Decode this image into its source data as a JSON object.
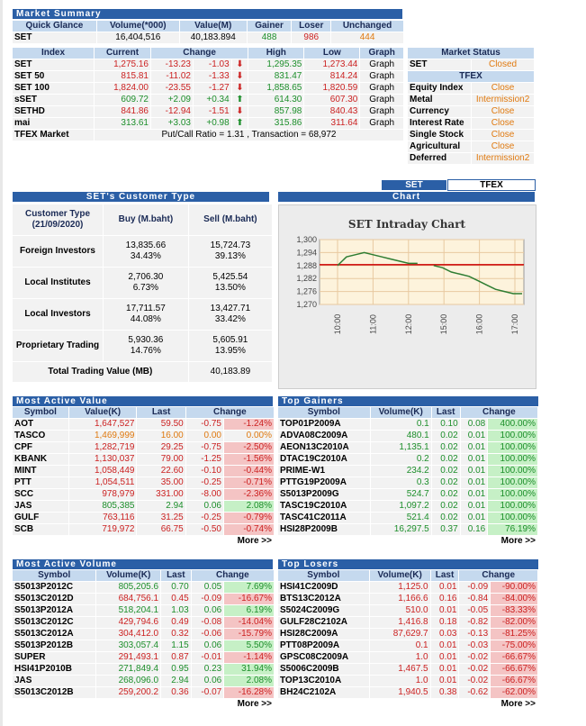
{
  "market_summary": {
    "title": "Market Summary",
    "head": [
      "Quick Glance",
      "Volume(*000)",
      "Value(M)",
      "Gainer",
      "Loser",
      "Unchanged"
    ],
    "row": {
      "label": "SET",
      "volume": "16,404,516",
      "value": "40,183.894",
      "gainer": "488",
      "loser": "986",
      "unchanged": "444"
    }
  },
  "index_table": {
    "head": [
      "Index",
      "Current",
      "Change",
      "High",
      "Low",
      "Graph"
    ],
    "rows": [
      {
        "name": "SET",
        "current": "1,275.16",
        "chg": "-13.23",
        "pct": "-1.03",
        "dir": "down",
        "high": "1,295.35",
        "low": "1,273.44",
        "graph": "Graph"
      },
      {
        "name": "SET 50",
        "current": "815.81",
        "chg": "-11.02",
        "pct": "-1.33",
        "dir": "down",
        "high": "831.47",
        "low": "814.24",
        "graph": "Graph"
      },
      {
        "name": "SET 100",
        "current": "1,824.00",
        "chg": "-23.55",
        "pct": "-1.27",
        "dir": "down",
        "high": "1,858.65",
        "low": "1,820.59",
        "graph": "Graph"
      },
      {
        "name": "sSET",
        "current": "609.72",
        "chg": "+2.09",
        "pct": "+0.34",
        "dir": "up",
        "high": "614.30",
        "low": "607.30",
        "graph": "Graph"
      },
      {
        "name": "SETHD",
        "current": "841.86",
        "chg": "-12.94",
        "pct": "-1.51",
        "dir": "down",
        "high": "857.98",
        "low": "840.43",
        "graph": "Graph"
      },
      {
        "name": "mai",
        "current": "313.61",
        "chg": "+3.03",
        "pct": "+0.98",
        "dir": "up",
        "high": "315.86",
        "low": "311.64",
        "graph": "Graph"
      }
    ],
    "tfex_label": "TFEX Market",
    "tfex_info": "Put/Call Ratio = 1.31 , Transaction = 68,972"
  },
  "market_status": {
    "title": "Market Status",
    "set_label": "SET",
    "set_status": "Closed",
    "tfex_title": "TFEX",
    "rows": [
      {
        "label": "Equity Index",
        "status": "Close"
      },
      {
        "label": "Metal",
        "status": "Intermission2"
      },
      {
        "label": "Currency",
        "status": "Close"
      },
      {
        "label": "Interest Rate",
        "status": "Close"
      },
      {
        "label": "Single Stock",
        "status": "Close"
      },
      {
        "label": "Agricultural",
        "status": "Close"
      },
      {
        "label": "Deferred",
        "status": "Intermission2"
      }
    ]
  },
  "chart_tabs": {
    "set": "SET",
    "tfex": "TFEX",
    "chart": "Chart"
  },
  "customer": {
    "title": "SET's Customer Type",
    "head": [
      "Customer Type (21/09/2020)",
      "Buy (M.baht)",
      "Sell (M.baht)"
    ],
    "rows": [
      {
        "type": "Foreign Investors",
        "buy": "13,835.66",
        "buy_pct": "34.43%",
        "sell": "15,724.73",
        "sell_pct": "39.13%"
      },
      {
        "type": "Local Institutes",
        "buy": "2,706.30",
        "buy_pct": "6.73%",
        "sell": "5,425.54",
        "sell_pct": "13.50%"
      },
      {
        "type": "Local Investors",
        "buy": "17,711.57",
        "buy_pct": "44.08%",
        "sell": "13,427.71",
        "sell_pct": "33.42%"
      },
      {
        "type": "Proprietary Trading",
        "buy": "5,930.36",
        "buy_pct": "14.76%",
        "sell": "5,605.91",
        "sell_pct": "13.95%"
      }
    ],
    "total_label": "Total Trading Value (MB)",
    "total": "40,183.89"
  },
  "chart_data": {
    "type": "line",
    "title": "SET Intraday Chart",
    "x_ticks": [
      "10:00",
      "11:00",
      "12:00",
      "15:00",
      "16:00",
      "17:00"
    ],
    "y_ticks": [
      "1,300",
      "1,294",
      "1,288",
      "1,282",
      "1,276",
      "1,270"
    ],
    "ylim": [
      1270,
      1300
    ],
    "reference_line": 1288.39,
    "series": [
      {
        "values": [
          1288,
          1292,
          1293,
          1294,
          1293,
          1292,
          1291,
          1290,
          1289,
          1289,
          1288,
          1287,
          1285,
          1284,
          1283,
          1281,
          1279,
          1277,
          1276,
          1275,
          1275
        ]
      }
    ],
    "colors": {
      "line": "#2e7d32",
      "ref": "#cc0000"
    }
  },
  "most_active_value": {
    "title": "Most Active Value",
    "head": [
      "Symbol",
      "Value(K)",
      "Last",
      "Change"
    ],
    "rows": [
      {
        "s": "AOT",
        "v": "1,647,527",
        "l": "59.50",
        "c": "-0.75",
        "p": "-1.24%",
        "d": "dn"
      },
      {
        "s": "TASCO",
        "v": "1,469,999",
        "l": "16.00",
        "c": "0.00",
        "p": "0.00%",
        "d": "or"
      },
      {
        "s": "CPF",
        "v": "1,282,719",
        "l": "29.25",
        "c": "-0.75",
        "p": "-2.50%",
        "d": "dn"
      },
      {
        "s": "KBANK",
        "v": "1,130,037",
        "l": "79.00",
        "c": "-1.25",
        "p": "-1.56%",
        "d": "dn"
      },
      {
        "s": "MINT",
        "v": "1,058,449",
        "l": "22.60",
        "c": "-0.10",
        "p": "-0.44%",
        "d": "dn"
      },
      {
        "s": "PTT",
        "v": "1,054,511",
        "l": "35.00",
        "c": "-0.25",
        "p": "-0.71%",
        "d": "dn"
      },
      {
        "s": "SCC",
        "v": "978,979",
        "l": "331.00",
        "c": "-8.00",
        "p": "-2.36%",
        "d": "dn"
      },
      {
        "s": "JAS",
        "v": "805,385",
        "l": "2.94",
        "c": "0.06",
        "p": "2.08%",
        "d": "up"
      },
      {
        "s": "GULF",
        "v": "763,116",
        "l": "31.25",
        "c": "-0.25",
        "p": "-0.79%",
        "d": "dn"
      },
      {
        "s": "SCB",
        "v": "719,972",
        "l": "66.75",
        "c": "-0.50",
        "p": "-0.74%",
        "d": "dn"
      }
    ],
    "more": "More >>"
  },
  "top_gainers": {
    "title": "Top Gainers",
    "head": [
      "Symbol",
      "Volume(K)",
      "Last",
      "Change"
    ],
    "rows": [
      {
        "s": "TOP01P2009A",
        "v": "0.1",
        "l": "0.10",
        "c": "0.08",
        "p": "400.00%"
      },
      {
        "s": "ADVA08C2009A",
        "v": "480.1",
        "l": "0.02",
        "c": "0.01",
        "p": "100.00%"
      },
      {
        "s": "AEON13C2010A",
        "v": "1,135.1",
        "l": "0.02",
        "c": "0.01",
        "p": "100.00%"
      },
      {
        "s": "DTAC19C2010A",
        "v": "0.2",
        "l": "0.02",
        "c": "0.01",
        "p": "100.00%"
      },
      {
        "s": "PRIME-W1",
        "v": "234.2",
        "l": "0.02",
        "c": "0.01",
        "p": "100.00%"
      },
      {
        "s": "PTTG19P2009A",
        "v": "0.3",
        "l": "0.02",
        "c": "0.01",
        "p": "100.00%"
      },
      {
        "s": "S5013P2009G",
        "v": "524.7",
        "l": "0.02",
        "c": "0.01",
        "p": "100.00%"
      },
      {
        "s": "TASC19C2010A",
        "v": "1,097.2",
        "l": "0.02",
        "c": "0.01",
        "p": "100.00%"
      },
      {
        "s": "TASC41C2011A",
        "v": "521.4",
        "l": "0.02",
        "c": "0.01",
        "p": "100.00%"
      },
      {
        "s": "HSI28P2009B",
        "v": "16,297.5",
        "l": "0.37",
        "c": "0.16",
        "p": "76.19%"
      }
    ],
    "more": "More >>"
  },
  "most_active_volume": {
    "title": "Most Active Volume",
    "head": [
      "Symbol",
      "Volume(K)",
      "Last",
      "Change"
    ],
    "rows": [
      {
        "s": "S5013P2012C",
        "v": "805,205.6",
        "l": "0.70",
        "c": "0.05",
        "p": "7.69%",
        "d": "up"
      },
      {
        "s": "S5013C2012D",
        "v": "684,756.1",
        "l": "0.45",
        "c": "-0.09",
        "p": "-16.67%",
        "d": "dn"
      },
      {
        "s": "S5013P2012A",
        "v": "518,204.1",
        "l": "1.03",
        "c": "0.06",
        "p": "6.19%",
        "d": "up"
      },
      {
        "s": "S5013C2012C",
        "v": "429,794.6",
        "l": "0.49",
        "c": "-0.08",
        "p": "-14.04%",
        "d": "dn"
      },
      {
        "s": "S5013C2012A",
        "v": "304,412.0",
        "l": "0.32",
        "c": "-0.06",
        "p": "-15.79%",
        "d": "dn"
      },
      {
        "s": "S5013P2012B",
        "v": "303,057.4",
        "l": "1.15",
        "c": "0.06",
        "p": "5.50%",
        "d": "up"
      },
      {
        "s": "SUPER",
        "v": "291,493.1",
        "l": "0.87",
        "c": "-0.01",
        "p": "-1.14%",
        "d": "dn"
      },
      {
        "s": "HSI41P2010B",
        "v": "271,849.4",
        "l": "0.95",
        "c": "0.23",
        "p": "31.94%",
        "d": "up"
      },
      {
        "s": "JAS",
        "v": "268,096.0",
        "l": "2.94",
        "c": "0.06",
        "p": "2.08%",
        "d": "up"
      },
      {
        "s": "S5013C2012B",
        "v": "259,200.2",
        "l": "0.36",
        "c": "-0.07",
        "p": "-16.28%",
        "d": "dn"
      }
    ],
    "more": "More >>"
  },
  "top_losers": {
    "title": "Top Losers",
    "head": [
      "Symbol",
      "Volume(K)",
      "Last",
      "Change"
    ],
    "rows": [
      {
        "s": "HSI41C2009D",
        "v": "1,125.0",
        "l": "0.01",
        "c": "-0.09",
        "p": "-90.00%"
      },
      {
        "s": "BTS13C2012A",
        "v": "1,166.6",
        "l": "0.16",
        "c": "-0.84",
        "p": "-84.00%"
      },
      {
        "s": "S5024C2009G",
        "v": "510.0",
        "l": "0.01",
        "c": "-0.05",
        "p": "-83.33%"
      },
      {
        "s": "GULF28C2102A",
        "v": "1,416.8",
        "l": "0.18",
        "c": "-0.82",
        "p": "-82.00%"
      },
      {
        "s": "HSI28C2009A",
        "v": "87,629.7",
        "l": "0.03",
        "c": "-0.13",
        "p": "-81.25%"
      },
      {
        "s": "PTT08P2009A",
        "v": "0.1",
        "l": "0.01",
        "c": "-0.03",
        "p": "-75.00%"
      },
      {
        "s": "GPSC08C2009A",
        "v": "1.0",
        "l": "0.01",
        "c": "-0.02",
        "p": "-66.67%"
      },
      {
        "s": "S5006C2009B",
        "v": "1,467.5",
        "l": "0.01",
        "c": "-0.02",
        "p": "-66.67%"
      },
      {
        "s": "TOP13C2010A",
        "v": "1.0",
        "l": "0.01",
        "c": "-0.02",
        "p": "-66.67%"
      },
      {
        "s": "BH24C2102A",
        "v": "1,940.5",
        "l": "0.38",
        "c": "-0.62",
        "p": "-62.00%"
      }
    ],
    "more": "More >>"
  }
}
